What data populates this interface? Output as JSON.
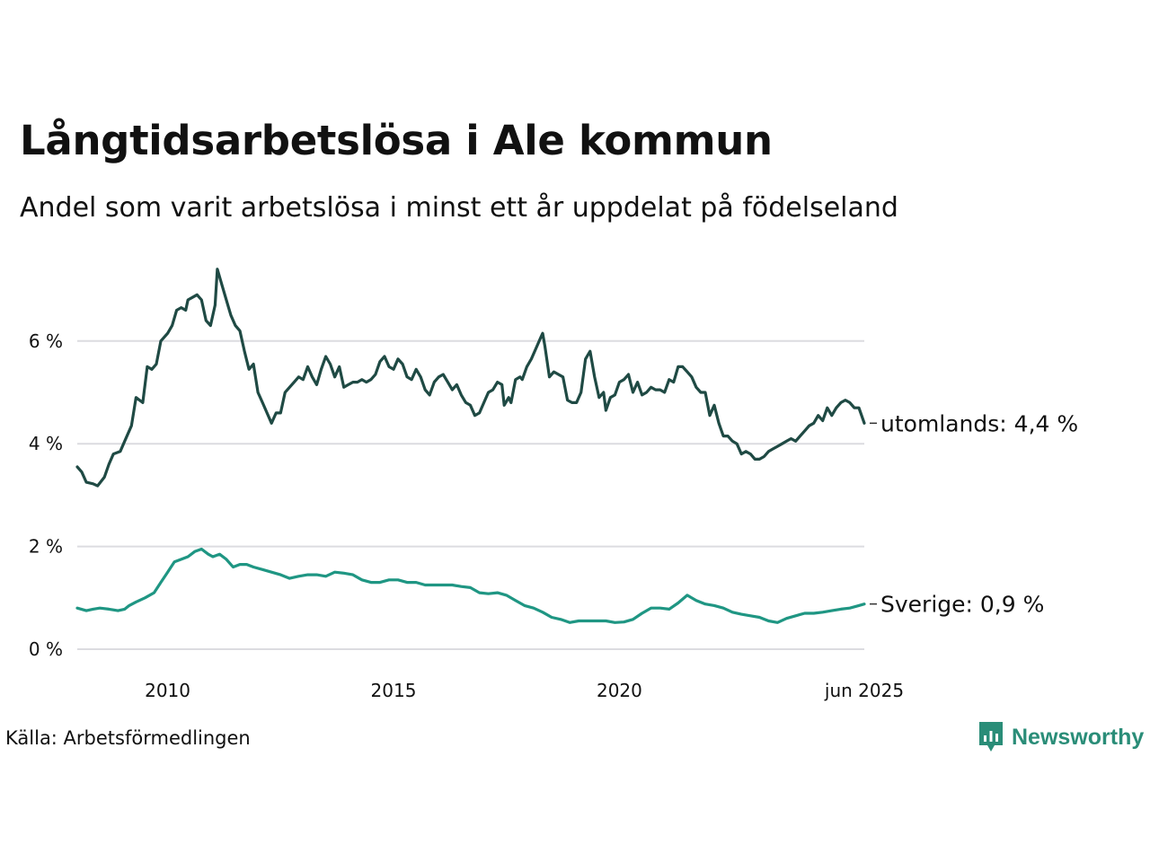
{
  "title": "Långtidsarbetslösa i Ale kommun",
  "subtitle": "Andel som varit arbetslösa i minst ett år uppdelat på födelseland",
  "source": "Källa: Arbetsförmedlingen",
  "brand": {
    "name": "Newsworthy",
    "icon": "newsworthy-logo-icon",
    "color": "#2a8d78"
  },
  "chart_data": {
    "type": "line",
    "title": "Långtidsarbetslösa i Ale kommun",
    "subtitle": "Andel som varit arbetslösa i minst ett år uppdelat på födelseland",
    "xlabel": "",
    "ylabel": "",
    "x_range": [
      2008.0,
      2025.42
    ],
    "ylim": [
      0,
      7.5
    ],
    "y_ticks": [
      0,
      2,
      4,
      6
    ],
    "y_tick_labels": [
      "0 %",
      "2 %",
      "4 %",
      "6 %"
    ],
    "x_ticks": [
      2010,
      2015,
      2020,
      2025.42
    ],
    "x_tick_labels": [
      "2010",
      "2015",
      "2020",
      "jun 2025"
    ],
    "grid": "horizontal",
    "legend": "end-of-line labels",
    "series": [
      {
        "name": "utomlands",
        "end_label": "utomlands: 4,4 %",
        "color": "#1f4a44",
        "points": [
          [
            2008.0,
            3.55
          ],
          [
            2008.1,
            3.45
          ],
          [
            2008.2,
            3.25
          ],
          [
            2008.35,
            3.22
          ],
          [
            2008.45,
            3.18
          ],
          [
            2008.6,
            3.35
          ],
          [
            2008.7,
            3.6
          ],
          [
            2008.8,
            3.8
          ],
          [
            2008.95,
            3.85
          ],
          [
            2009.05,
            4.05
          ],
          [
            2009.2,
            4.35
          ],
          [
            2009.3,
            4.9
          ],
          [
            2009.45,
            4.8
          ],
          [
            2009.55,
            5.5
          ],
          [
            2009.65,
            5.45
          ],
          [
            2009.75,
            5.55
          ],
          [
            2009.85,
            6.0
          ],
          [
            2010.0,
            6.15
          ],
          [
            2010.1,
            6.3
          ],
          [
            2010.2,
            6.6
          ],
          [
            2010.3,
            6.65
          ],
          [
            2010.4,
            6.6
          ],
          [
            2010.45,
            6.8
          ],
          [
            2010.55,
            6.85
          ],
          [
            2010.65,
            6.9
          ],
          [
            2010.75,
            6.8
          ],
          [
            2010.85,
            6.4
          ],
          [
            2010.95,
            6.3
          ],
          [
            2011.05,
            6.7
          ],
          [
            2011.1,
            7.4
          ],
          [
            2011.2,
            7.1
          ],
          [
            2011.3,
            6.8
          ],
          [
            2011.4,
            6.5
          ],
          [
            2011.5,
            6.3
          ],
          [
            2011.6,
            6.2
          ],
          [
            2011.7,
            5.8
          ],
          [
            2011.8,
            5.45
          ],
          [
            2011.9,
            5.55
          ],
          [
            2012.0,
            5.0
          ],
          [
            2012.1,
            4.8
          ],
          [
            2012.2,
            4.6
          ],
          [
            2012.3,
            4.4
          ],
          [
            2012.4,
            4.6
          ],
          [
            2012.5,
            4.6
          ],
          [
            2012.6,
            5.0
          ],
          [
            2012.7,
            5.1
          ],
          [
            2012.8,
            5.2
          ],
          [
            2012.9,
            5.3
          ],
          [
            2013.0,
            5.25
          ],
          [
            2013.1,
            5.5
          ],
          [
            2013.2,
            5.3
          ],
          [
            2013.3,
            5.15
          ],
          [
            2013.4,
            5.45
          ],
          [
            2013.5,
            5.7
          ],
          [
            2013.6,
            5.55
          ],
          [
            2013.7,
            5.3
          ],
          [
            2013.8,
            5.5
          ],
          [
            2013.9,
            5.1
          ],
          [
            2014.0,
            5.15
          ],
          [
            2014.1,
            5.2
          ],
          [
            2014.2,
            5.2
          ],
          [
            2014.3,
            5.25
          ],
          [
            2014.4,
            5.2
          ],
          [
            2014.5,
            5.25
          ],
          [
            2014.6,
            5.35
          ],
          [
            2014.7,
            5.6
          ],
          [
            2014.8,
            5.7
          ],
          [
            2014.9,
            5.5
          ],
          [
            2015.0,
            5.45
          ],
          [
            2015.1,
            5.65
          ],
          [
            2015.2,
            5.55
          ],
          [
            2015.3,
            5.3
          ],
          [
            2015.4,
            5.25
          ],
          [
            2015.5,
            5.45
          ],
          [
            2015.6,
            5.3
          ],
          [
            2015.7,
            5.05
          ],
          [
            2015.8,
            4.95
          ],
          [
            2015.9,
            5.2
          ],
          [
            2016.0,
            5.3
          ],
          [
            2016.1,
            5.35
          ],
          [
            2016.2,
            5.2
          ],
          [
            2016.3,
            5.05
          ],
          [
            2016.4,
            5.15
          ],
          [
            2016.5,
            4.95
          ],
          [
            2016.6,
            4.8
          ],
          [
            2016.7,
            4.75
          ],
          [
            2016.8,
            4.55
          ],
          [
            2016.9,
            4.6
          ],
          [
            2017.0,
            4.8
          ],
          [
            2017.1,
            5.0
          ],
          [
            2017.2,
            5.05
          ],
          [
            2017.3,
            5.2
          ],
          [
            2017.4,
            5.15
          ],
          [
            2017.45,
            4.75
          ],
          [
            2017.55,
            4.9
          ],
          [
            2017.6,
            4.8
          ],
          [
            2017.7,
            5.25
          ],
          [
            2017.8,
            5.3
          ],
          [
            2017.85,
            5.25
          ],
          [
            2017.95,
            5.5
          ],
          [
            2018.05,
            5.65
          ],
          [
            2018.15,
            5.85
          ],
          [
            2018.25,
            6.05
          ],
          [
            2018.3,
            6.15
          ],
          [
            2018.35,
            5.9
          ],
          [
            2018.45,
            5.3
          ],
          [
            2018.55,
            5.4
          ],
          [
            2018.65,
            5.35
          ],
          [
            2018.75,
            5.3
          ],
          [
            2018.85,
            4.85
          ],
          [
            2018.95,
            4.8
          ],
          [
            2019.05,
            4.8
          ],
          [
            2019.15,
            5.0
          ],
          [
            2019.25,
            5.65
          ],
          [
            2019.35,
            5.8
          ],
          [
            2019.45,
            5.3
          ],
          [
            2019.55,
            4.9
          ],
          [
            2019.65,
            5.0
          ],
          [
            2019.7,
            4.65
          ],
          [
            2019.8,
            4.9
          ],
          [
            2019.9,
            4.95
          ],
          [
            2020.0,
            5.2
          ],
          [
            2020.1,
            5.25
          ],
          [
            2020.2,
            5.35
          ],
          [
            2020.3,
            5.0
          ],
          [
            2020.4,
            5.2
          ],
          [
            2020.5,
            4.95
          ],
          [
            2020.6,
            5.0
          ],
          [
            2020.7,
            5.1
          ],
          [
            2020.8,
            5.05
          ],
          [
            2020.9,
            5.05
          ],
          [
            2021.0,
            5.0
          ],
          [
            2021.1,
            5.25
          ],
          [
            2021.2,
            5.2
          ],
          [
            2021.3,
            5.5
          ],
          [
            2021.4,
            5.5
          ],
          [
            2021.5,
            5.4
          ],
          [
            2021.6,
            5.3
          ],
          [
            2021.7,
            5.1
          ],
          [
            2021.8,
            5.0
          ],
          [
            2021.9,
            5.0
          ],
          [
            2022.0,
            4.55
          ],
          [
            2022.1,
            4.75
          ],
          [
            2022.2,
            4.4
          ],
          [
            2022.3,
            4.15
          ],
          [
            2022.4,
            4.15
          ],
          [
            2022.5,
            4.05
          ],
          [
            2022.6,
            4.0
          ],
          [
            2022.7,
            3.8
          ],
          [
            2022.8,
            3.85
          ],
          [
            2022.9,
            3.8
          ],
          [
            2023.0,
            3.7
          ],
          [
            2023.1,
            3.7
          ],
          [
            2023.2,
            3.75
          ],
          [
            2023.3,
            3.85
          ],
          [
            2023.4,
            3.9
          ],
          [
            2023.5,
            3.95
          ],
          [
            2023.6,
            4.0
          ],
          [
            2023.7,
            4.05
          ],
          [
            2023.8,
            4.1
          ],
          [
            2023.9,
            4.05
          ],
          [
            2024.0,
            4.15
          ],
          [
            2024.1,
            4.25
          ],
          [
            2024.2,
            4.35
          ],
          [
            2024.3,
            4.4
          ],
          [
            2024.4,
            4.55
          ],
          [
            2024.5,
            4.45
          ],
          [
            2024.6,
            4.7
          ],
          [
            2024.7,
            4.55
          ],
          [
            2024.8,
            4.7
          ],
          [
            2024.9,
            4.8
          ],
          [
            2025.0,
            4.85
          ],
          [
            2025.1,
            4.8
          ],
          [
            2025.2,
            4.7
          ],
          [
            2025.3,
            4.7
          ],
          [
            2025.42,
            4.4
          ]
        ]
      },
      {
        "name": "Sverige",
        "end_label": "Sverige: 0,9 %",
        "color": "#1f9683",
        "points": [
          [
            2008.0,
            0.8
          ],
          [
            2008.2,
            0.75
          ],
          [
            2008.35,
            0.78
          ],
          [
            2008.5,
            0.8
          ],
          [
            2008.7,
            0.78
          ],
          [
            2008.9,
            0.75
          ],
          [
            2009.05,
            0.78
          ],
          [
            2009.15,
            0.85
          ],
          [
            2009.3,
            0.92
          ],
          [
            2009.5,
            1.0
          ],
          [
            2009.7,
            1.1
          ],
          [
            2009.85,
            1.3
          ],
          [
            2010.0,
            1.5
          ],
          [
            2010.15,
            1.7
          ],
          [
            2010.3,
            1.75
          ],
          [
            2010.45,
            1.8
          ],
          [
            2010.6,
            1.9
          ],
          [
            2010.75,
            1.95
          ],
          [
            2010.9,
            1.85
          ],
          [
            2011.0,
            1.8
          ],
          [
            2011.15,
            1.85
          ],
          [
            2011.3,
            1.75
          ],
          [
            2011.45,
            1.6
          ],
          [
            2011.6,
            1.65
          ],
          [
            2011.75,
            1.65
          ],
          [
            2011.9,
            1.6
          ],
          [
            2012.1,
            1.55
          ],
          [
            2012.3,
            1.5
          ],
          [
            2012.5,
            1.45
          ],
          [
            2012.7,
            1.38
          ],
          [
            2012.9,
            1.42
          ],
          [
            2013.1,
            1.45
          ],
          [
            2013.3,
            1.45
          ],
          [
            2013.5,
            1.42
          ],
          [
            2013.7,
            1.5
          ],
          [
            2013.9,
            1.48
          ],
          [
            2014.1,
            1.45
          ],
          [
            2014.3,
            1.35
          ],
          [
            2014.5,
            1.3
          ],
          [
            2014.7,
            1.3
          ],
          [
            2014.9,
            1.35
          ],
          [
            2015.1,
            1.35
          ],
          [
            2015.3,
            1.3
          ],
          [
            2015.5,
            1.3
          ],
          [
            2015.7,
            1.25
          ],
          [
            2015.9,
            1.25
          ],
          [
            2016.1,
            1.25
          ],
          [
            2016.3,
            1.25
          ],
          [
            2016.5,
            1.22
          ],
          [
            2016.7,
            1.2
          ],
          [
            2016.9,
            1.1
          ],
          [
            2017.1,
            1.08
          ],
          [
            2017.3,
            1.1
          ],
          [
            2017.5,
            1.05
          ],
          [
            2017.7,
            0.95
          ],
          [
            2017.9,
            0.85
          ],
          [
            2018.1,
            0.8
          ],
          [
            2018.3,
            0.72
          ],
          [
            2018.5,
            0.62
          ],
          [
            2018.7,
            0.58
          ],
          [
            2018.9,
            0.52
          ],
          [
            2019.1,
            0.55
          ],
          [
            2019.3,
            0.55
          ],
          [
            2019.5,
            0.55
          ],
          [
            2019.7,
            0.55
          ],
          [
            2019.9,
            0.52
          ],
          [
            2020.1,
            0.53
          ],
          [
            2020.3,
            0.58
          ],
          [
            2020.5,
            0.7
          ],
          [
            2020.7,
            0.8
          ],
          [
            2020.9,
            0.8
          ],
          [
            2021.1,
            0.78
          ],
          [
            2021.3,
            0.9
          ],
          [
            2021.5,
            1.05
          ],
          [
            2021.7,
            0.95
          ],
          [
            2021.9,
            0.88
          ],
          [
            2022.1,
            0.85
          ],
          [
            2022.3,
            0.8
          ],
          [
            2022.5,
            0.72
          ],
          [
            2022.7,
            0.68
          ],
          [
            2022.9,
            0.65
          ],
          [
            2023.1,
            0.62
          ],
          [
            2023.3,
            0.55
          ],
          [
            2023.5,
            0.52
          ],
          [
            2023.7,
            0.6
          ],
          [
            2023.9,
            0.65
          ],
          [
            2024.1,
            0.7
          ],
          [
            2024.3,
            0.7
          ],
          [
            2024.5,
            0.72
          ],
          [
            2024.7,
            0.75
          ],
          [
            2024.9,
            0.78
          ],
          [
            2025.1,
            0.8
          ],
          [
            2025.3,
            0.85
          ],
          [
            2025.42,
            0.88
          ]
        ]
      }
    ]
  }
}
